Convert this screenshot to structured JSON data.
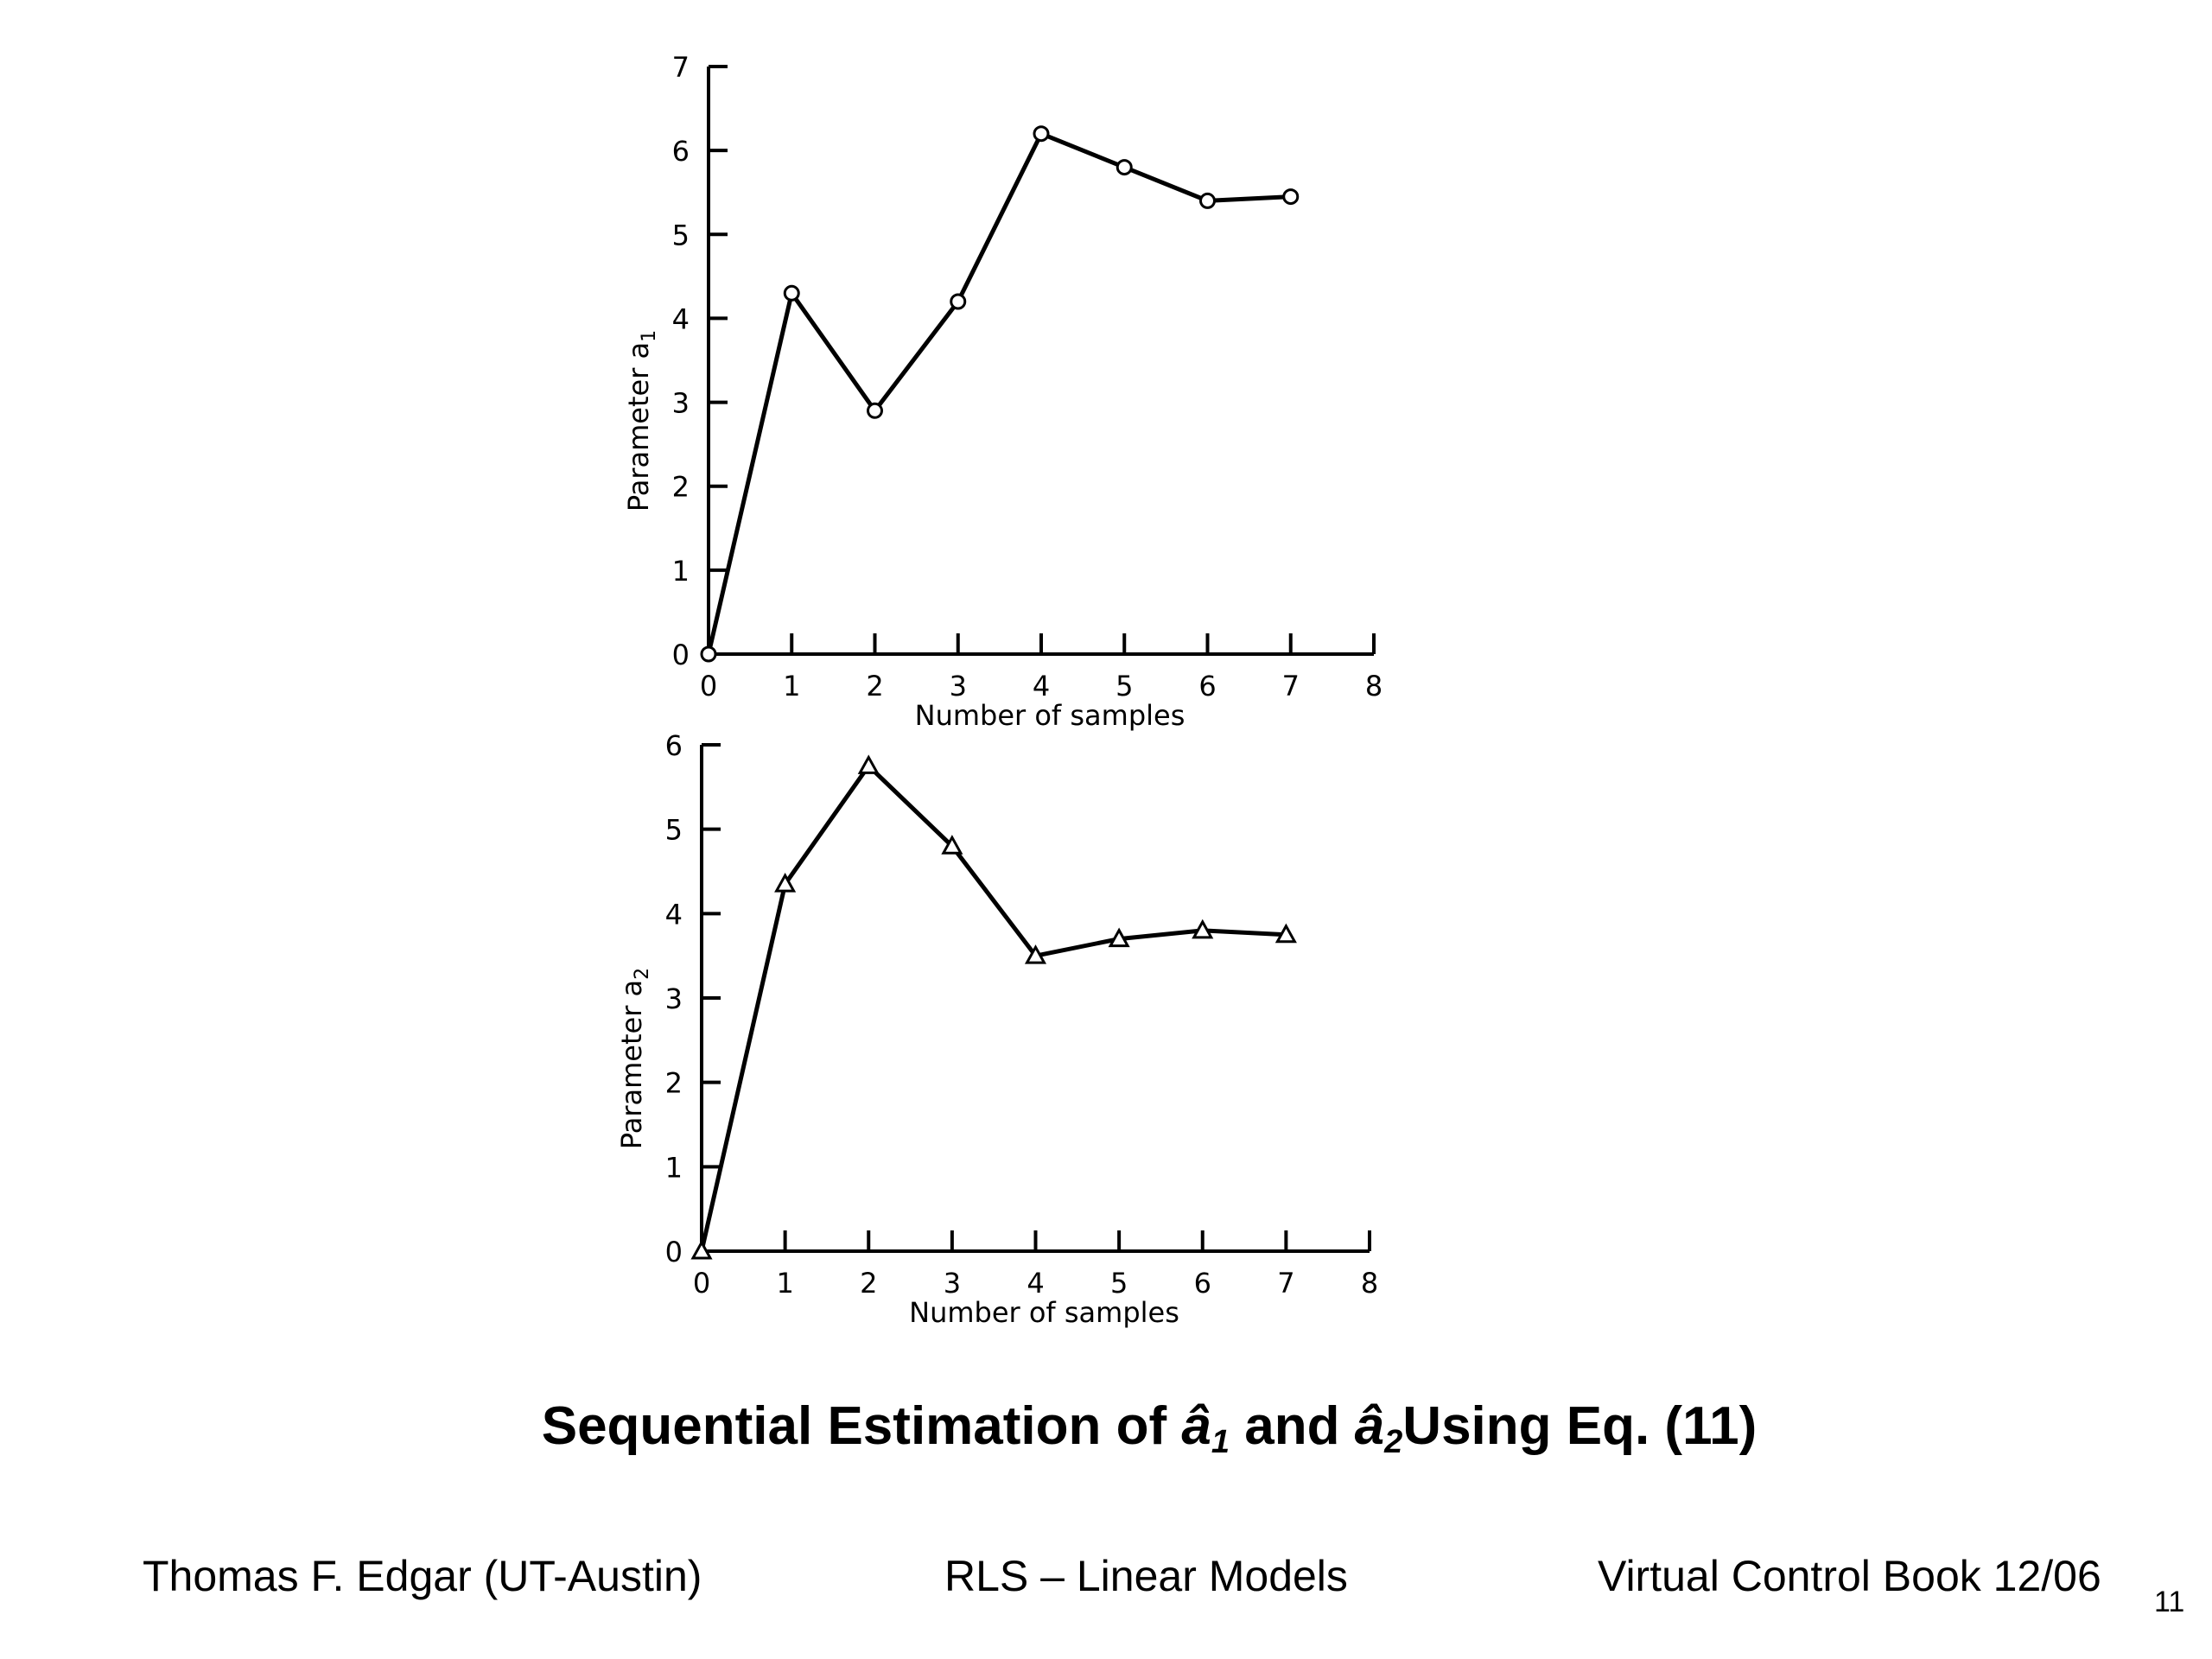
{
  "chart_data": [
    {
      "type": "line",
      "marker": "circle",
      "xlabel": "Number of samples",
      "ylabel": "Parameter a",
      "ylabel_sub": "1",
      "xlim": [
        0,
        8
      ],
      "ylim": [
        0,
        7
      ],
      "xticks": [
        0,
        1,
        2,
        3,
        4,
        5,
        6,
        7,
        8
      ],
      "yticks": [
        0,
        1,
        2,
        3,
        4,
        5,
        6,
        7
      ],
      "x": [
        0,
        1,
        2,
        3,
        4,
        5,
        6,
        7
      ],
      "y": [
        0,
        4.3,
        2.9,
        4.2,
        6.2,
        5.8,
        5.4,
        5.45
      ],
      "grid": false
    },
    {
      "type": "line",
      "marker": "triangle",
      "xlabel": "Number of samples",
      "ylabel": "Parameter a",
      "ylabel_sub": "2",
      "xlim": [
        0,
        8
      ],
      "ylim": [
        0,
        6
      ],
      "xticks": [
        0,
        1,
        2,
        3,
        4,
        5,
        6,
        7,
        8
      ],
      "yticks": [
        0,
        1,
        2,
        3,
        4,
        5,
        6
      ],
      "x": [
        0,
        1,
        2,
        3,
        4,
        5,
        6,
        7
      ],
      "y": [
        0,
        4.35,
        5.75,
        4.8,
        3.5,
        3.7,
        3.8,
        3.75
      ],
      "grid": false
    }
  ],
  "caption": {
    "prefix": "Sequential Estimation of ",
    "sym1": "â",
    "sub1": "1",
    "middle": " and ",
    "sym2": "â",
    "sub2": "2",
    "suffix": "Using Eq. (11)"
  },
  "footer": {
    "author": "Thomas F. Edgar (UT-Austin)",
    "topic": "RLS – Linear Models",
    "book": "Virtual Control Book 12/06",
    "page": "11"
  }
}
